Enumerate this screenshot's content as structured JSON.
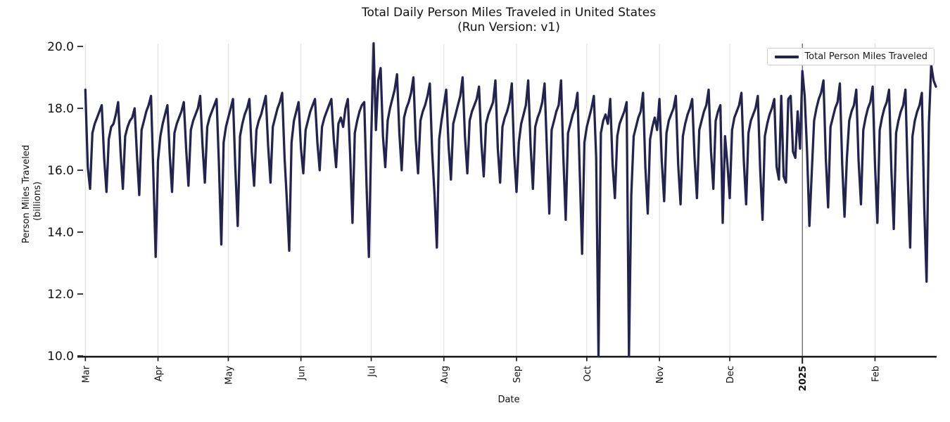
{
  "page": {
    "background": "#ffffff"
  },
  "chart_data": {
    "type": "line",
    "title": "Total Daily Person Miles Traveled in United States",
    "subtitle": "(Run Version: v1)",
    "xlabel": "Date",
    "ylabel": "Person Miles Traveled",
    "ylabel_line2": "(billions)",
    "ylim": [
      10.0,
      20.0
    ],
    "y_ticks": [
      {
        "value": 20.0,
        "label": "20.0"
      },
      {
        "value": 18.0,
        "label": "18.0"
      },
      {
        "value": 16.0,
        "label": "16.0"
      },
      {
        "value": 14.0,
        "label": "14.0"
      },
      {
        "value": 12.0,
        "label": "12.0"
      },
      {
        "value": 10.0,
        "label": "10.0"
      }
    ],
    "x_ticks": [
      {
        "label": "Mar",
        "day": 0,
        "bold": false
      },
      {
        "label": "Apr",
        "day": 31,
        "bold": false
      },
      {
        "label": "May",
        "day": 61,
        "bold": false
      },
      {
        "label": "Jun",
        "day": 92,
        "bold": false
      },
      {
        "label": "Jul",
        "day": 122,
        "bold": false
      },
      {
        "label": "Aug",
        "day": 153,
        "bold": false
      },
      {
        "label": "Sep",
        "day": 184,
        "bold": false
      },
      {
        "label": "Oct",
        "day": 214,
        "bold": false
      },
      {
        "label": "Nov",
        "day": 245,
        "bold": false
      },
      {
        "label": "Dec",
        "day": 275,
        "bold": false
      },
      {
        "label": "2025",
        "day": 306,
        "bold": true
      },
      {
        "label": "Feb",
        "day": 337,
        "bold": false
      }
    ],
    "x_range_days": [
      -1,
      363
    ],
    "grid": "vertical-month-lines-only",
    "legend_position": "upper right",
    "colors": {
      "line": "#23234f",
      "month_gridline": "#dcdcdc",
      "year_gridline": "#46464e",
      "spine": "#1c1c28",
      "tick": "#1c1c28",
      "text": "#111111"
    },
    "legend": {
      "entries": [
        {
          "label": "Total Person Miles Traveled",
          "color": "#23234f"
        }
      ]
    },
    "series": [
      {
        "name": "Total Person Miles Traveled",
        "start_date": "2024-03-01",
        "frequency": "daily",
        "values": [
          18.6,
          16.1,
          15.4,
          17.2,
          17.5,
          17.7,
          17.9,
          18.1,
          16.4,
          15.3,
          17.0,
          17.4,
          17.5,
          17.8,
          18.2,
          16.6,
          15.4,
          17.1,
          17.4,
          17.6,
          17.7,
          18.0,
          16.5,
          15.2,
          17.3,
          17.6,
          17.9,
          18.1,
          18.4,
          15.9,
          13.2,
          16.3,
          17.1,
          17.5,
          17.8,
          18.1,
          16.5,
          15.3,
          17.2,
          17.5,
          17.7,
          17.9,
          18.2,
          16.7,
          15.5,
          17.3,
          17.6,
          17.8,
          18.0,
          18.4,
          16.8,
          15.6,
          17.4,
          17.7,
          17.9,
          18.1,
          18.3,
          16.2,
          13.6,
          16.9,
          17.4,
          17.7,
          18.0,
          18.3,
          16.1,
          14.2,
          17.1,
          17.5,
          17.8,
          18.0,
          18.3,
          16.6,
          15.5,
          17.3,
          17.6,
          17.8,
          18.1,
          18.4,
          16.8,
          15.6,
          17.4,
          17.7,
          18.0,
          18.2,
          18.5,
          16.4,
          15.0,
          13.4,
          16.9,
          17.6,
          17.9,
          18.2,
          16.7,
          15.9,
          17.3,
          17.6,
          17.9,
          18.1,
          18.3,
          16.9,
          16.0,
          17.4,
          17.7,
          17.9,
          18.1,
          18.3,
          17.0,
          16.1,
          17.5,
          17.7,
          17.4,
          18.0,
          18.3,
          16.5,
          14.3,
          17.2,
          17.6,
          17.9,
          18.1,
          18.2,
          15.5,
          13.2,
          17.0,
          20.1,
          17.3,
          18.9,
          19.3,
          17.1,
          16.1,
          17.6,
          18.0,
          18.3,
          18.6,
          19.1,
          17.2,
          16.0,
          17.7,
          18.0,
          18.2,
          18.5,
          19.0,
          17.0,
          15.9,
          17.6,
          17.9,
          18.1,
          18.4,
          18.8,
          16.6,
          15.2,
          13.5,
          17.0,
          17.6,
          18.1,
          18.6,
          16.8,
          15.7,
          17.5,
          17.8,
          18.1,
          18.4,
          19.0,
          17.1,
          15.9,
          17.6,
          17.9,
          18.1,
          18.3,
          18.7,
          16.9,
          15.8,
          17.5,
          17.8,
          18.0,
          18.2,
          18.9,
          16.7,
          15.6,
          17.4,
          17.7,
          17.9,
          18.2,
          18.8,
          16.5,
          15.3,
          16.9,
          17.5,
          17.8,
          18.1,
          18.9,
          16.8,
          15.4,
          17.4,
          17.7,
          17.9,
          18.2,
          18.8,
          16.6,
          14.6,
          17.3,
          17.6,
          17.9,
          18.1,
          18.9,
          16.4,
          14.4,
          17.2,
          17.5,
          17.8,
          18.0,
          18.5,
          15.9,
          13.3,
          16.9,
          17.4,
          17.7,
          18.0,
          18.4,
          16.4,
          10.0,
          17.2,
          17.6,
          17.8,
          17.5,
          18.3,
          16.2,
          15.1,
          17.1,
          17.5,
          17.7,
          17.9,
          18.2,
          10.0,
          15.2,
          17.1,
          17.4,
          17.7,
          17.9,
          18.5,
          16.1,
          14.6,
          17.0,
          17.4,
          17.7,
          17.3,
          18.3,
          16.3,
          15.0,
          17.2,
          17.6,
          17.8,
          18.0,
          18.4,
          16.2,
          14.9,
          17.1,
          17.5,
          17.8,
          18.0,
          18.3,
          16.4,
          15.1,
          17.3,
          17.6,
          17.9,
          18.1,
          18.6,
          16.6,
          15.4,
          17.6,
          17.9,
          18.1,
          14.3,
          17.1,
          16.2,
          15.1,
          17.3,
          17.7,
          17.9,
          18.1,
          18.5,
          16.3,
          14.9,
          17.2,
          17.6,
          17.8,
          18.0,
          18.4,
          16.0,
          14.4,
          17.1,
          17.5,
          17.8,
          18.0,
          18.3,
          16.1,
          15.7,
          18.4,
          15.8,
          15.6,
          18.3,
          18.4,
          16.6,
          16.4,
          17.9,
          16.7,
          19.2,
          18.4,
          16.6,
          14.2,
          15.9,
          17.6,
          18.0,
          18.3,
          18.5,
          18.9,
          16.4,
          14.8,
          17.4,
          17.7,
          18.0,
          18.2,
          18.8,
          16.2,
          14.5,
          16.4,
          17.6,
          17.9,
          18.1,
          18.6,
          16.3,
          14.9,
          17.3,
          17.7,
          18.0,
          18.2,
          18.7,
          16.2,
          14.3,
          17.3,
          17.7,
          18.0,
          18.2,
          18.6,
          16.0,
          14.1,
          17.2,
          17.6,
          17.9,
          18.1,
          18.6,
          15.8,
          13.5,
          17.1,
          17.6,
          17.9,
          18.1,
          18.5,
          14.8,
          12.4,
          17.5,
          19.4,
          18.9,
          18.7
        ]
      }
    ]
  }
}
